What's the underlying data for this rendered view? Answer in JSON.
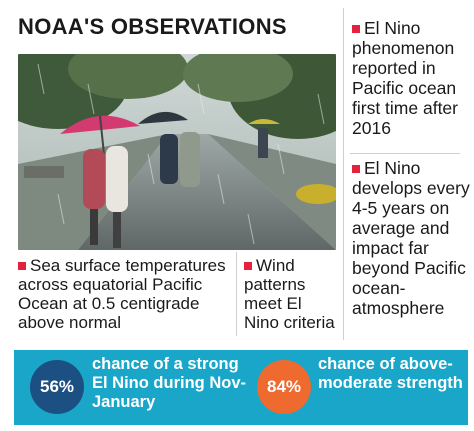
{
  "title": "NOAA'S OBSERVATIONS",
  "notes": {
    "right_top": "El Nino phenomenon reported in Pacific ocean first time after 2016",
    "right_bottom": "El Nino develops every 4-5 years on average and impact far beyond Pacific ocean-atmosphere",
    "bottom_left": "Sea surface temperatures across equatorial Pacific Ocean at 0.5 centigrade above normal",
    "bottom_middle": "Wind patterns meet El Nino criteria"
  },
  "stats": [
    {
      "value": "56%",
      "label": "chance of a strong El Nino during Nov-January",
      "color": "#1c4f82"
    },
    {
      "value": "84%",
      "label": "chance of above-moderate strength",
      "color": "#ef6a2e"
    }
  ],
  "colors": {
    "bullet": "#e2233b",
    "banner": "#1aa6c8"
  },
  "photo": {
    "icon": "rainy-street-photo"
  }
}
